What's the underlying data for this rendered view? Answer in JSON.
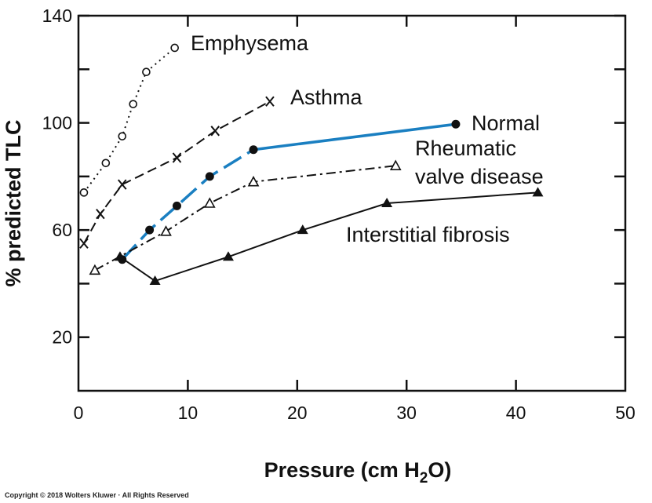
{
  "chart_data": {
    "type": "line",
    "xlabel": "Pressure (cm H",
    "xlabel_sub": "2",
    "xlabel_end": "O)",
    "ylabel": "% predicted TLC",
    "xlim": [
      0,
      50
    ],
    "ylim": [
      0,
      140
    ],
    "x_ticks": [
      0,
      10,
      20,
      30,
      40,
      50
    ],
    "y_tick_labels": [
      20,
      60,
      100,
      140
    ],
    "y_ticks_unlabeled": [
      40,
      80,
      120
    ],
    "grid": false,
    "series": [
      {
        "name": "Emphysema",
        "line_style": "dotted",
        "marker": "open-circle",
        "color": "#111111",
        "points": [
          [
            0.5,
            74
          ],
          [
            2.5,
            85
          ],
          [
            4,
            95
          ],
          [
            5,
            107
          ],
          [
            6.2,
            119
          ],
          [
            8.8,
            128
          ]
        ]
      },
      {
        "name": "Asthma",
        "line_style": "dashed",
        "marker": "x",
        "color": "#111111",
        "points": [
          [
            0.5,
            55
          ],
          [
            2,
            66
          ],
          [
            4,
            77
          ],
          [
            9,
            87
          ],
          [
            12.5,
            97
          ],
          [
            17.5,
            108
          ]
        ]
      },
      {
        "name": "Normal",
        "line_style": "dashed",
        "marker": "filled-circle",
        "color": "#1a7fc1",
        "points": [
          [
            4,
            49
          ],
          [
            6.5,
            60
          ],
          [
            9,
            69
          ],
          [
            12,
            80
          ],
          [
            16,
            90
          ],
          [
            34.5,
            99.5
          ]
        ]
      },
      {
        "name": "Rheumatic valve disease",
        "line_style": "dash-dot",
        "marker": "open-triangle",
        "color": "#111111",
        "points": [
          [
            1.5,
            45
          ],
          [
            8,
            59.5
          ],
          [
            12,
            70
          ],
          [
            16,
            78
          ],
          [
            29,
            84
          ]
        ]
      },
      {
        "name": "Interstitial fibrosis",
        "line_style": "solid",
        "marker": "filled-triangle",
        "color": "#111111",
        "points": [
          [
            3.8,
            50
          ],
          [
            7,
            41
          ],
          [
            13.7,
            50
          ],
          [
            20.5,
            60
          ],
          [
            28.2,
            70
          ],
          [
            42,
            74
          ]
        ]
      }
    ]
  },
  "copyright": "Copyright © 2018 Wolters Kluwer · All Rights Reserved"
}
